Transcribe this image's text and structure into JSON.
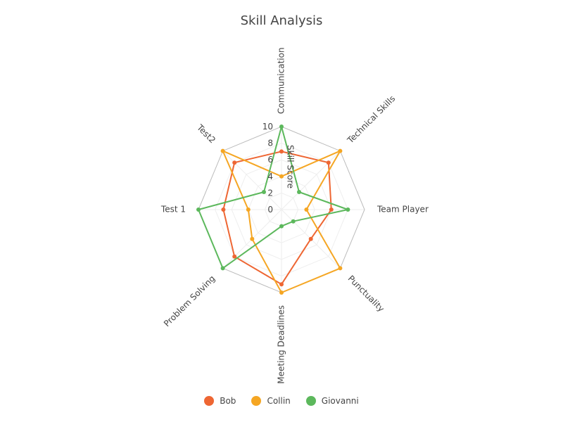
{
  "chart_data": {
    "type": "radar",
    "title": "Skill Analysis",
    "radial_axis_label": "Skill Score",
    "categories": [
      "Communication",
      "Technical Skills",
      "Team Player",
      "Punctuality",
      "Meeting Deadlines",
      "Problem Solving",
      "Test 1",
      "Test2"
    ],
    "radial_ticks": [
      "0",
      "2",
      "4",
      "6",
      "8",
      "10"
    ],
    "rlim": [
      0,
      10
    ],
    "grid": true,
    "legend_position": "bottom",
    "series": [
      {
        "name": "Bob",
        "color": "#ee6633",
        "values": [
          7,
          8,
          6,
          5,
          9,
          8,
          7,
          8
        ]
      },
      {
        "name": "Collin",
        "color": "#f5a623",
        "values": [
          4,
          10,
          3,
          10,
          10,
          5,
          4,
          10
        ]
      },
      {
        "name": "Giovanni",
        "color": "#5cb85c",
        "values": [
          10,
          3,
          8,
          2,
          2,
          10,
          10,
          3
        ]
      }
    ]
  }
}
